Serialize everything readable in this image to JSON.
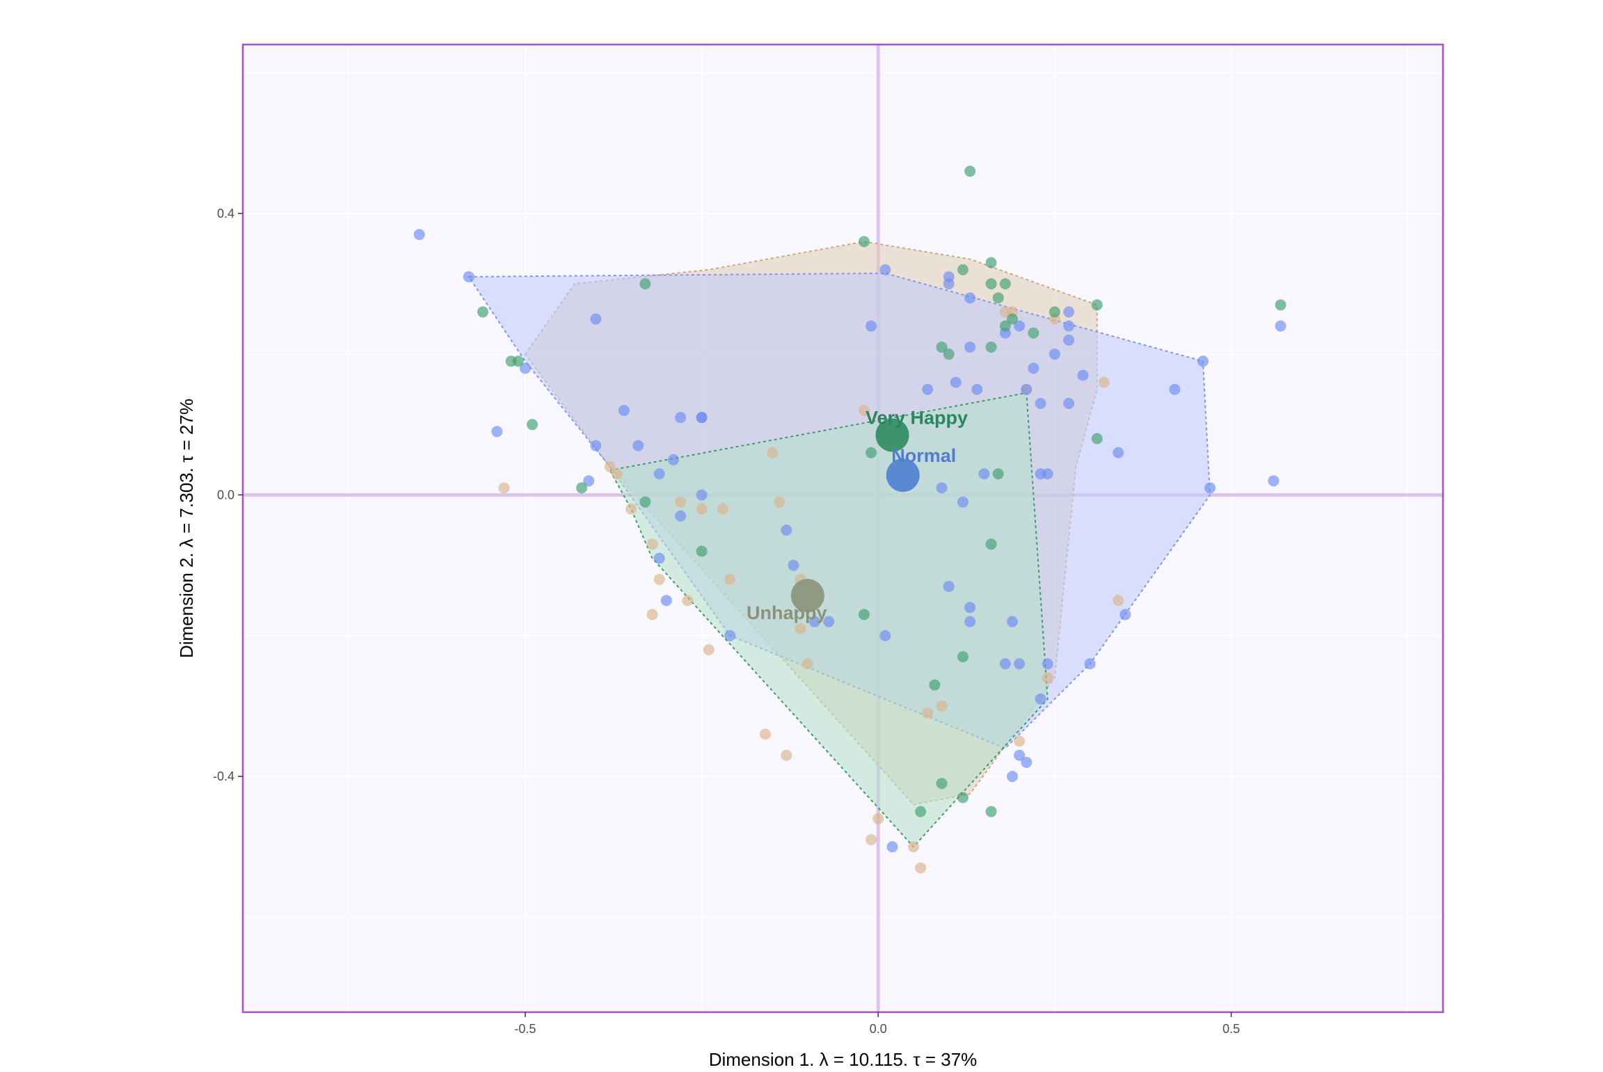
{
  "chart_data": {
    "type": "scatter",
    "subtype": "correspondence-analysis-biplot",
    "title": "",
    "xlabel": "Dimension 1.   λ = 10.115.  τ = 37%",
    "ylabel": "Dimension 2.   λ = 7.303.  τ = 27%",
    "xlim": [
      -0.9,
      0.8
    ],
    "ylim": [
      -0.735,
      0.64
    ],
    "x_ticks": [
      {
        "value": -0.5,
        "label": "-0.5"
      },
      {
        "value": 0.0,
        "label": "0.0"
      },
      {
        "value": 0.5,
        "label": "0.5"
      }
    ],
    "y_ticks": [
      {
        "value": 0.4,
        "label": "0.4"
      },
      {
        "value": 0.0,
        "label": "0.0"
      },
      {
        "value": -0.4,
        "label": "-0.4"
      }
    ],
    "grid": true,
    "legend": "none",
    "colors": {
      "panel_bg": "#f8f7fd",
      "panel_border": "#a24ed6",
      "axis_line": "#dcc4ec",
      "grid": "#ffffff"
    },
    "series": [
      {
        "name": "Unhappy",
        "color": "#d9b38c",
        "label_color": "#8c9078",
        "centroid_color": "#8c9479",
        "hull_fill": "#e0cdb5",
        "hull_stroke": "#c9a883",
        "centroid": {
          "x": -0.1,
          "y": -0.143
        },
        "hull": [
          [
            -0.5,
            0.2
          ],
          [
            -0.43,
            0.3
          ],
          [
            -0.24,
            0.32
          ],
          [
            -0.02,
            0.36
          ],
          [
            0.13,
            0.335
          ],
          [
            0.31,
            0.27
          ],
          [
            0.31,
            0.15
          ],
          [
            0.28,
            0.04
          ],
          [
            0.25,
            -0.26
          ],
          [
            0.13,
            -0.425
          ],
          [
            0.05,
            -0.44
          ],
          [
            -0.38,
            0.04
          ]
        ],
        "points": [
          [
            -0.53,
            0.01
          ],
          [
            -0.38,
            0.04
          ],
          [
            -0.37,
            0.03
          ],
          [
            -0.35,
            -0.02
          ],
          [
            -0.32,
            -0.07
          ],
          [
            -0.32,
            -0.17
          ],
          [
            -0.31,
            -0.12
          ],
          [
            -0.28,
            -0.01
          ],
          [
            -0.27,
            -0.15
          ],
          [
            -0.25,
            -0.02
          ],
          [
            -0.24,
            -0.22
          ],
          [
            -0.22,
            -0.02
          ],
          [
            -0.21,
            -0.12
          ],
          [
            -0.16,
            -0.34
          ],
          [
            -0.15,
            0.06
          ],
          [
            -0.14,
            -0.01
          ],
          [
            -0.13,
            -0.37
          ],
          [
            -0.11,
            -0.12
          ],
          [
            -0.11,
            -0.19
          ],
          [
            -0.1,
            -0.24
          ],
          [
            -0.02,
            0.12
          ],
          [
            0.0,
            -0.46
          ],
          [
            -0.01,
            -0.49
          ],
          [
            0.05,
            -0.5
          ],
          [
            0.06,
            -0.53
          ],
          [
            0.07,
            -0.31
          ],
          [
            0.09,
            -0.3
          ],
          [
            0.18,
            0.26
          ],
          [
            0.19,
            0.26
          ],
          [
            0.21,
            0.15
          ],
          [
            0.2,
            -0.35
          ],
          [
            0.24,
            -0.26
          ],
          [
            0.25,
            0.25
          ],
          [
            0.32,
            0.16
          ],
          [
            0.34,
            -0.15
          ]
        ]
      },
      {
        "name": "Normal",
        "color": "#6b8cf2",
        "label_color": "#4f7dd0",
        "centroid_color": "#4d7fd1",
        "hull_fill": "#bfcafc",
        "hull_stroke": "#7f97e6",
        "centroid": {
          "x": 0.035,
          "y": 0.028
        },
        "hull": [
          [
            -0.58,
            0.31
          ],
          [
            0.01,
            0.315
          ],
          [
            0.46,
            0.19
          ],
          [
            0.47,
            0.0
          ],
          [
            0.3,
            -0.24
          ],
          [
            0.18,
            -0.36
          ],
          [
            -0.21,
            -0.2
          ],
          [
            -0.38,
            0.04
          ],
          [
            -0.5,
            0.19
          ]
        ],
        "points": [
          [
            -0.65,
            0.37
          ],
          [
            -0.58,
            0.31
          ],
          [
            -0.54,
            0.09
          ],
          [
            -0.5,
            0.18
          ],
          [
            -0.41,
            0.02
          ],
          [
            -0.4,
            0.25
          ],
          [
            -0.4,
            0.07
          ],
          [
            -0.36,
            0.12
          ],
          [
            -0.34,
            0.07
          ],
          [
            -0.31,
            0.03
          ],
          [
            -0.31,
            -0.09
          ],
          [
            -0.3,
            -0.15
          ],
          [
            -0.29,
            0.05
          ],
          [
            -0.28,
            0.11
          ],
          [
            -0.28,
            -0.03
          ],
          [
            -0.25,
            0.11
          ],
          [
            -0.25,
            0.11
          ],
          [
            -0.25,
            0.0
          ],
          [
            -0.21,
            -0.2
          ],
          [
            -0.13,
            -0.05
          ],
          [
            -0.12,
            -0.1
          ],
          [
            -0.09,
            -0.18
          ],
          [
            -0.07,
            -0.18
          ],
          [
            -0.01,
            0.24
          ],
          [
            0.01,
            0.32
          ],
          [
            0.01,
            -0.2
          ],
          [
            0.02,
            -0.5
          ],
          [
            0.07,
            0.15
          ],
          [
            0.09,
            0.01
          ],
          [
            0.1,
            0.31
          ],
          [
            0.1,
            0.3
          ],
          [
            0.1,
            -0.13
          ],
          [
            0.11,
            0.16
          ],
          [
            0.12,
            -0.01
          ],
          [
            0.13,
            0.28
          ],
          [
            0.13,
            0.21
          ],
          [
            0.13,
            -0.16
          ],
          [
            0.13,
            -0.18
          ],
          [
            0.14,
            0.15
          ],
          [
            0.15,
            0.03
          ],
          [
            0.18,
            0.23
          ],
          [
            0.18,
            -0.24
          ],
          [
            0.19,
            -0.18
          ],
          [
            0.19,
            -0.4
          ],
          [
            0.2,
            0.24
          ],
          [
            0.2,
            -0.24
          ],
          [
            0.2,
            -0.37
          ],
          [
            0.21,
            -0.38
          ],
          [
            0.21,
            0.15
          ],
          [
            0.22,
            0.18
          ],
          [
            0.23,
            0.13
          ],
          [
            0.23,
            0.03
          ],
          [
            0.23,
            -0.29
          ],
          [
            0.24,
            0.03
          ],
          [
            0.24,
            -0.24
          ],
          [
            0.25,
            0.2
          ],
          [
            0.27,
            0.26
          ],
          [
            0.27,
            0.24
          ],
          [
            0.27,
            0.22
          ],
          [
            0.27,
            0.13
          ],
          [
            0.29,
            0.17
          ],
          [
            0.3,
            -0.24
          ],
          [
            0.34,
            0.06
          ],
          [
            0.35,
            -0.17
          ],
          [
            0.42,
            0.15
          ],
          [
            0.46,
            0.19
          ],
          [
            0.47,
            0.01
          ],
          [
            0.56,
            0.02
          ],
          [
            0.57,
            0.24
          ]
        ]
      },
      {
        "name": "Very Happy",
        "color": "#3fa070",
        "label_color": "#2a8660",
        "centroid_color": "#2e8b62",
        "hull_fill": "#b4e0c8",
        "hull_stroke": "#3c9a6d",
        "centroid": {
          "x": 0.02,
          "y": 0.085
        },
        "hull": [
          [
            -0.38,
            0.035
          ],
          [
            0.21,
            0.145
          ],
          [
            0.24,
            -0.29
          ],
          [
            0.05,
            -0.5
          ],
          [
            -0.32,
            -0.09
          ],
          [
            -0.35,
            -0.02
          ]
        ],
        "points": [
          [
            -0.56,
            0.26
          ],
          [
            -0.52,
            0.19
          ],
          [
            -0.51,
            0.19
          ],
          [
            -0.49,
            0.1
          ],
          [
            -0.42,
            0.01
          ],
          [
            -0.33,
            -0.01
          ],
          [
            -0.33,
            0.3
          ],
          [
            -0.25,
            -0.08
          ],
          [
            -0.02,
            0.36
          ],
          [
            -0.02,
            -0.17
          ],
          [
            -0.01,
            0.06
          ],
          [
            0.06,
            -0.45
          ],
          [
            0.08,
            -0.27
          ],
          [
            0.09,
            0.21
          ],
          [
            0.1,
            0.2
          ],
          [
            0.09,
            -0.41
          ],
          [
            0.12,
            0.32
          ],
          [
            0.12,
            -0.23
          ],
          [
            0.12,
            -0.43
          ],
          [
            0.13,
            0.46
          ],
          [
            0.16,
            0.33
          ],
          [
            0.16,
            0.3
          ],
          [
            0.16,
            0.21
          ],
          [
            0.16,
            -0.07
          ],
          [
            0.16,
            -0.45
          ],
          [
            0.17,
            0.28
          ],
          [
            0.17,
            0.03
          ],
          [
            0.18,
            0.3
          ],
          [
            0.18,
            0.24
          ],
          [
            0.19,
            0.25
          ],
          [
            0.22,
            0.23
          ],
          [
            0.25,
            0.26
          ],
          [
            0.31,
            0.27
          ],
          [
            0.31,
            0.08
          ],
          [
            0.57,
            0.27
          ]
        ]
      }
    ]
  }
}
